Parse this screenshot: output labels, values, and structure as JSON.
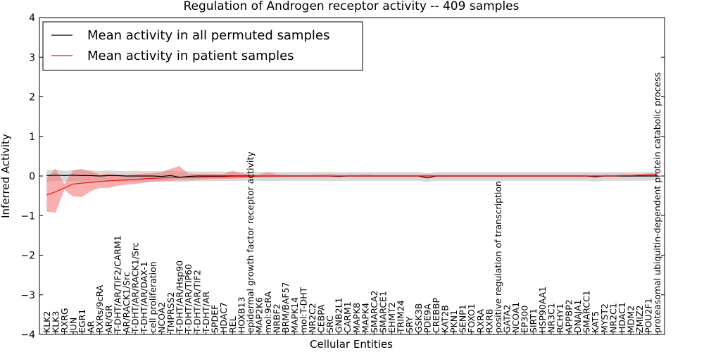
{
  "chart_data": {
    "type": "line",
    "title": "Regulation of Androgen receptor activity -- 409 samples",
    "xlabel": "Cellular Entities",
    "ylabel": "Inferred Activity",
    "ylim": [
      -4,
      4
    ],
    "yticks": [
      -4,
      -3,
      -2,
      -1,
      0,
      1,
      2,
      3,
      4
    ],
    "ytick_labels": [
      "−4",
      "−3",
      "−2",
      "−1",
      "0",
      "1",
      "2",
      "3",
      "4"
    ],
    "grid": false,
    "legend_position": "upper-left",
    "colors": {
      "permuted": "#000000",
      "patient": "#e31a1c",
      "permuted_band": "#c8c8c8",
      "patient_band": "#f47a7a"
    },
    "categories": [
      "KLK2",
      "KLK3",
      "RXRG",
      "JUN",
      "EGR1",
      "AR",
      "RXRs/9cRA",
      "AR/GR",
      "T-DHT/AR/TIF2/CARM1",
      "AR/RACK1/Src",
      "T-DHT/AR/RACK1/Src",
      "T-DHT/AR/DAX-1",
      "cell proliferation",
      "NCOA2",
      "TMPRSS2",
      "T-DHT/AR/Hsp90",
      "T-DHT/AR/TIP60",
      "T-DHT/AR/TIF2",
      "T-DHT/AR",
      "SPDEF",
      "HDAC7",
      "REL",
      "HOXB13",
      "epidermal growth factor receptor activity",
      "MAP2K6",
      "mol:9cRA",
      "NRBF2",
      "BRM/BAF57",
      "MAPK14",
      "mol:T-DHT",
      "NR2C2",
      "CEBPA",
      "SRC",
      "GNB2L1",
      "CARM1",
      "MAPK8",
      "MAPK4",
      "SMARCA2",
      "SMARCE1",
      "EHMT2",
      "TRIM24",
      "SRY",
      "GSK3B",
      "PDE9A",
      "CREBBP",
      "KAT2B",
      "PKN1",
      "SENP1",
      "FOXO1",
      "RXRA",
      "RXRB",
      "positive regulation of transcription",
      "GATA2",
      "NCOA1",
      "EP300",
      "SIRT1",
      "HSP90AA1",
      "NR3C1",
      "RCHY1",
      "APPBP2",
      "DNAJA1",
      "SMARCC1",
      "KAT5",
      "MYST2",
      "NR2C1",
      "HDAC1",
      "MDM2",
      "ZMIZ2",
      "POU2F1",
      "proteasomal ubiquitin-dependent protein catabolic process"
    ],
    "series": [
      {
        "name": "Mean activity in all permuted samples",
        "values": [
          0.01,
          0.02,
          0.01,
          0.02,
          0.01,
          0.01,
          0.0,
          0.01,
          0.01,
          0.0,
          0.0,
          0.0,
          0.0,
          -0.01,
          0.01,
          -0.03,
          -0.01,
          0.0,
          0.0,
          0.0,
          0.0,
          0.0,
          0.0,
          0.0,
          0.0,
          0.0,
          0.0,
          0.0,
          0.0,
          0.0,
          0.0,
          0.0,
          0.0,
          -0.01,
          0.0,
          0.0,
          0.0,
          0.0,
          0.0,
          0.0,
          0.0,
          0.0,
          0.0,
          -0.05,
          0.0,
          0.0,
          0.0,
          0.0,
          0.0,
          0.0,
          0.0,
          0.0,
          0.0,
          0.0,
          0.0,
          0.0,
          0.0,
          0.0,
          0.0,
          0.0,
          0.0,
          0.0,
          -0.02,
          0.0,
          0.0,
          0.0,
          0.0,
          0.0,
          0.0,
          0.0
        ],
        "lower": [
          -0.15,
          -0.12,
          -0.14,
          -0.12,
          -0.14,
          -0.14,
          -0.15,
          -0.15,
          -0.14,
          -0.14,
          -0.15,
          -0.14,
          -0.14,
          -0.14,
          -0.14,
          -0.15,
          -0.14,
          -0.13,
          -0.13,
          -0.13,
          -0.13,
          -0.13,
          -0.12,
          -0.12,
          -0.12,
          -0.13,
          -0.12,
          -0.12,
          -0.12,
          -0.12,
          -0.12,
          -0.12,
          -0.13,
          -0.13,
          -0.12,
          -0.12,
          -0.12,
          -0.12,
          -0.12,
          -0.12,
          -0.12,
          -0.12,
          -0.12,
          -0.15,
          -0.12,
          -0.12,
          -0.12,
          -0.12,
          -0.12,
          -0.12,
          -0.12,
          -0.12,
          -0.12,
          -0.12,
          -0.12,
          -0.12,
          -0.12,
          -0.12,
          -0.12,
          -0.12,
          -0.12,
          -0.12,
          -0.14,
          -0.12,
          -0.12,
          -0.12,
          -0.12,
          -0.12,
          -0.12,
          -0.1
        ],
        "upper": [
          0.15,
          0.17,
          0.13,
          0.15,
          0.14,
          0.14,
          0.13,
          0.14,
          0.13,
          0.12,
          0.13,
          0.12,
          0.12,
          0.12,
          0.13,
          0.11,
          0.12,
          0.11,
          0.11,
          0.11,
          0.11,
          0.11,
          0.1,
          0.1,
          0.1,
          0.1,
          0.1,
          0.1,
          0.1,
          0.1,
          0.1,
          0.1,
          0.1,
          0.09,
          0.1,
          0.1,
          0.1,
          0.1,
          0.1,
          0.1,
          0.1,
          0.1,
          0.1,
          0.07,
          0.1,
          0.1,
          0.1,
          0.1,
          0.1,
          0.1,
          0.1,
          0.1,
          0.1,
          0.1,
          0.1,
          0.1,
          0.1,
          0.1,
          0.1,
          0.1,
          0.1,
          0.1,
          0.1,
          0.1,
          0.1,
          0.1,
          0.1,
          0.1,
          0.1,
          0.1
        ]
      },
      {
        "name": "Mean activity in patient samples",
        "values": [
          -0.48,
          -0.4,
          -0.3,
          -0.2,
          -0.18,
          -0.16,
          -0.14,
          -0.12,
          -0.11,
          -0.1,
          -0.09,
          -0.07,
          -0.06,
          -0.05,
          -0.04,
          -0.04,
          -0.03,
          -0.03,
          -0.02,
          -0.02,
          -0.02,
          -0.01,
          -0.01,
          -0.01,
          0.0,
          0.0,
          0.0,
          0.0,
          0.0,
          0.0,
          0.0,
          0.0,
          0.0,
          0.0,
          0.0,
          0.0,
          0.0,
          0.0,
          0.0,
          0.0,
          0.0,
          0.0,
          0.0,
          0.0,
          0.0,
          0.0,
          0.0,
          0.0,
          0.0,
          0.0,
          0.0,
          0.0,
          0.0,
          0.0,
          0.0,
          0.0,
          0.0,
          0.0,
          0.0,
          0.0,
          0.0,
          0.0,
          0.0,
          0.0,
          0.0,
          0.01,
          0.01,
          0.02,
          0.03,
          0.04
        ],
        "lower": [
          -0.9,
          -0.93,
          -0.35,
          -0.52,
          -0.53,
          -0.38,
          -0.3,
          -0.3,
          -0.25,
          -0.22,
          -0.2,
          -0.17,
          -0.15,
          -0.13,
          -0.12,
          -0.1,
          -0.1,
          -0.09,
          -0.08,
          -0.07,
          -0.07,
          -0.07,
          -0.06,
          -0.05,
          -0.04,
          -0.03,
          -0.03,
          -0.02,
          -0.02,
          -0.02,
          -0.02,
          -0.02,
          -0.02,
          -0.02,
          -0.02,
          -0.02,
          -0.02,
          -0.02,
          -0.02,
          -0.02,
          -0.02,
          -0.02,
          -0.02,
          -0.02,
          -0.02,
          -0.02,
          -0.02,
          -0.02,
          -0.02,
          -0.02,
          -0.02,
          -0.02,
          -0.02,
          -0.02,
          -0.02,
          -0.02,
          -0.02,
          -0.02,
          -0.02,
          -0.02,
          -0.02,
          -0.02,
          -0.02,
          -0.02,
          -0.02,
          -0.02,
          -0.02,
          -0.01,
          0.0,
          0.01
        ],
        "upper": [
          -0.05,
          0.18,
          -0.2,
          0.15,
          0.18,
          0.12,
          0.03,
          0.06,
          0.03,
          0.02,
          0.05,
          0.06,
          0.07,
          0.1,
          0.18,
          0.25,
          0.06,
          0.05,
          0.06,
          0.05,
          0.05,
          0.13,
          0.07,
          0.04,
          0.03,
          0.1,
          0.04,
          0.03,
          0.03,
          0.02,
          0.03,
          0.04,
          0.05,
          0.03,
          0.03,
          0.03,
          0.05,
          0.03,
          0.03,
          0.03,
          0.03,
          0.03,
          0.03,
          0.05,
          0.03,
          0.03,
          0.03,
          0.03,
          0.03,
          0.03,
          0.03,
          0.03,
          0.03,
          0.03,
          0.03,
          0.03,
          0.03,
          0.03,
          0.03,
          0.03,
          0.03,
          0.03,
          0.03,
          0.03,
          0.03,
          0.04,
          0.04,
          0.05,
          0.06,
          0.07
        ]
      }
    ]
  }
}
